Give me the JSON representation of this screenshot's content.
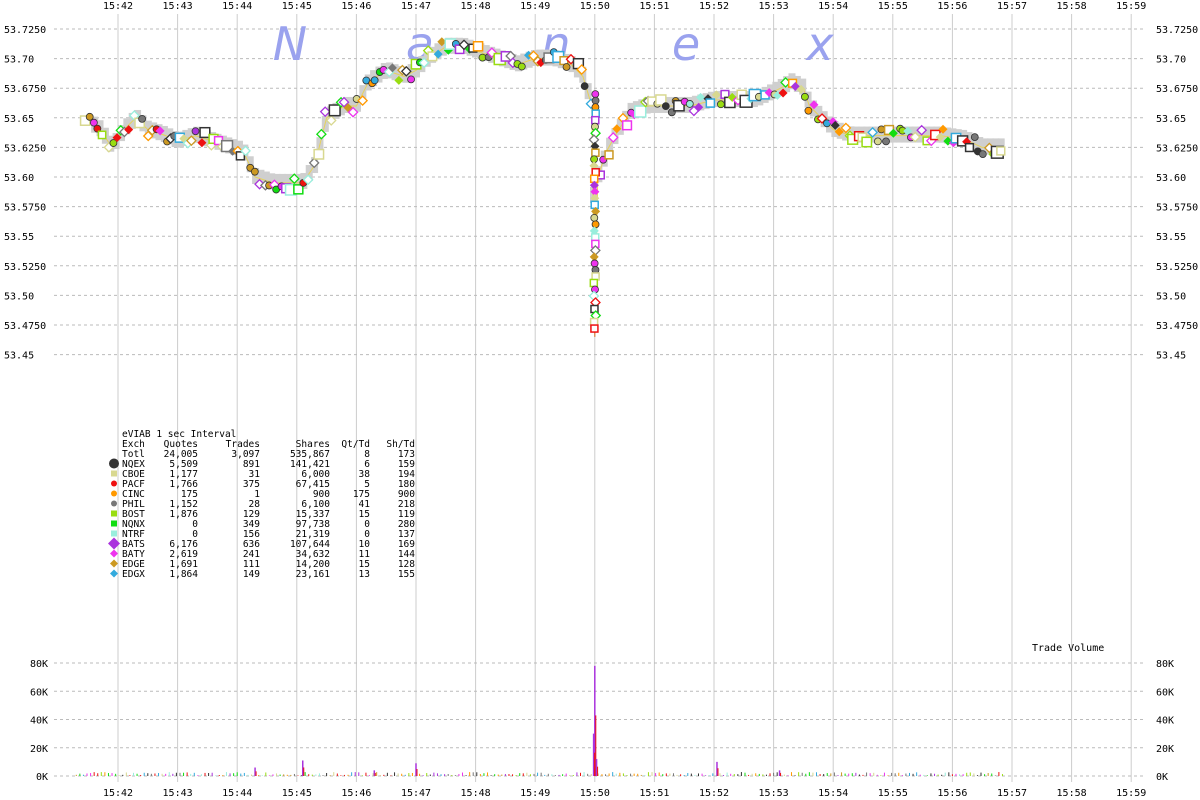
{
  "chart_data": {
    "type": "scatter",
    "watermark": [
      "N",
      "a",
      "n",
      "e",
      "x"
    ],
    "x_ticks": [
      "15:42",
      "15:43",
      "15:44",
      "15:45",
      "15:46",
      "15:47",
      "15:48",
      "15:49",
      "15:50",
      "15:51",
      "15:52",
      "15:53",
      "15:54",
      "15:55",
      "15:56",
      "15:57",
      "15:58",
      "15:59"
    ],
    "x_range_minutes": [
      41.2,
      59.3
    ],
    "y_ticks": [
      "53.7250",
      "53.70",
      "53.6750",
      "53.65",
      "53.6250",
      "53.60",
      "53.5750",
      "53.55",
      "53.5250",
      "53.50",
      "53.4750",
      "53.45"
    ],
    "ylim": [
      53.45,
      53.725
    ],
    "volume_label": "Trade Volume",
    "volume_ticks": [
      "80K",
      "60K",
      "40K",
      "20K",
      "0K"
    ],
    "volume_ylim": [
      0,
      80000
    ],
    "legend": {
      "title": "eVIAB 1 sec Interval",
      "headers": [
        "Exch",
        "Quotes",
        "Trades",
        "Shares",
        "Qt/Td",
        "Sh/Td"
      ],
      "rows": [
        {
          "exch": "Totl",
          "quotes": "24,005",
          "trades": "3,097",
          "shares": "535,867",
          "qt_td": "8",
          "sh_td": "173",
          "color": "",
          "marker": "none"
        },
        {
          "exch": "NQEX",
          "quotes": "5,509",
          "trades": "891",
          "shares": "141,421",
          "qt_td": "6",
          "sh_td": "159",
          "color": "#333333",
          "marker": "circle-big"
        },
        {
          "exch": "CBOE",
          "quotes": "1,177",
          "trades": "31",
          "shares": "6,000",
          "qt_td": "38",
          "sh_td": "194",
          "color": "#d8d890",
          "marker": "square"
        },
        {
          "exch": "PACF",
          "quotes": "1,766",
          "trades": "375",
          "shares": "67,415",
          "qt_td": "5",
          "sh_td": "180",
          "color": "#ee1111",
          "marker": "circle"
        },
        {
          "exch": "CINC",
          "quotes": "175",
          "trades": "1",
          "shares": "900",
          "qt_td": "175",
          "sh_td": "900",
          "color": "#ff9900",
          "marker": "circle"
        },
        {
          "exch": "PHIL",
          "quotes": "1,152",
          "trades": "28",
          "shares": "6,100",
          "qt_td": "41",
          "sh_td": "218",
          "color": "#777777",
          "marker": "circle"
        },
        {
          "exch": "BOST",
          "quotes": "1,876",
          "trades": "129",
          "shares": "15,337",
          "qt_td": "15",
          "sh_td": "119",
          "color": "#99dd11",
          "marker": "square"
        },
        {
          "exch": "NQNX",
          "quotes": "0",
          "trades": "349",
          "shares": "97,738",
          "qt_td": "0",
          "sh_td": "280",
          "color": "#11dd11",
          "marker": "square"
        },
        {
          "exch": "NTRF",
          "quotes": "0",
          "trades": "156",
          "shares": "21,319",
          "qt_td": "0",
          "sh_td": "137",
          "color": "#99eedd",
          "marker": "square"
        },
        {
          "exch": "BATS",
          "quotes": "6,176",
          "trades": "636",
          "shares": "107,644",
          "qt_td": "10",
          "sh_td": "169",
          "color": "#aa33dd",
          "marker": "diamond-big"
        },
        {
          "exch": "BATY",
          "quotes": "2,619",
          "trades": "241",
          "shares": "34,632",
          "qt_td": "11",
          "sh_td": "144",
          "color": "#ee33ee",
          "marker": "diamond"
        },
        {
          "exch": "EDGE",
          "quotes": "1,691",
          "trades": "111",
          "shares": "14,200",
          "qt_td": "15",
          "sh_td": "128",
          "color": "#cc9922",
          "marker": "diamond"
        },
        {
          "exch": "EDGX",
          "quotes": "1,864",
          "trades": "149",
          "shares": "23,161",
          "qt_td": "13",
          "sh_td": "155",
          "color": "#33aadd",
          "marker": "diamond"
        }
      ]
    },
    "price_path": [
      [
        41.4,
        53.65
      ],
      [
        41.7,
        53.64
      ],
      [
        41.9,
        53.625
      ],
      [
        42.1,
        53.64
      ],
      [
        42.3,
        53.65
      ],
      [
        42.5,
        53.64
      ],
      [
        42.8,
        53.635
      ],
      [
        43.0,
        53.63
      ],
      [
        43.3,
        53.635
      ],
      [
        43.6,
        53.63
      ],
      [
        43.9,
        53.625
      ],
      [
        44.1,
        53.622
      ],
      [
        44.3,
        53.6
      ],
      [
        44.6,
        53.595
      ],
      [
        44.9,
        53.595
      ],
      [
        45.1,
        53.595
      ],
      [
        45.3,
        53.61
      ],
      [
        45.5,
        53.65
      ],
      [
        45.8,
        53.66
      ],
      [
        46.0,
        53.66
      ],
      [
        46.2,
        53.68
      ],
      [
        46.5,
        53.69
      ],
      [
        46.8,
        53.685
      ],
      [
        47.0,
        53.69
      ],
      [
        47.2,
        53.7
      ],
      [
        47.5,
        53.71
      ],
      [
        47.8,
        53.71
      ],
      [
        48.1,
        53.705
      ],
      [
        48.4,
        53.7
      ],
      [
        48.7,
        53.695
      ],
      [
        49.0,
        53.7
      ],
      [
        49.3,
        53.7
      ],
      [
        49.6,
        53.695
      ],
      [
        49.8,
        53.685
      ],
      [
        49.95,
        53.66
      ],
      [
        50.0,
        53.47
      ],
      [
        50.05,
        53.6
      ],
      [
        50.2,
        53.622
      ],
      [
        50.4,
        53.64
      ],
      [
        50.6,
        53.655
      ],
      [
        50.9,
        53.66
      ],
      [
        51.2,
        53.66
      ],
      [
        51.6,
        53.66
      ],
      [
        52.0,
        53.665
      ],
      [
        52.4,
        53.665
      ],
      [
        52.7,
        53.665
      ],
      [
        53.0,
        53.672
      ],
      [
        53.3,
        53.68
      ],
      [
        53.5,
        53.675
      ],
      [
        53.6,
        53.66
      ],
      [
        53.8,
        53.65
      ],
      [
        54.0,
        53.64
      ],
      [
        54.3,
        53.635
      ],
      [
        54.6,
        53.635
      ],
      [
        55.0,
        53.635
      ],
      [
        55.4,
        53.635
      ],
      [
        55.8,
        53.635
      ],
      [
        56.2,
        53.632
      ],
      [
        56.5,
        53.625
      ],
      [
        56.8,
        53.625
      ]
    ],
    "volume_spikes": [
      [
        50.0,
        78000
      ],
      [
        49.98,
        30000
      ],
      [
        50.03,
        12000
      ],
      [
        52.05,
        10000
      ],
      [
        47.0,
        9000
      ],
      [
        44.3,
        6000
      ],
      [
        45.1,
        11000
      ],
      [
        46.3,
        4000
      ],
      [
        53.1,
        4000
      ]
    ]
  }
}
